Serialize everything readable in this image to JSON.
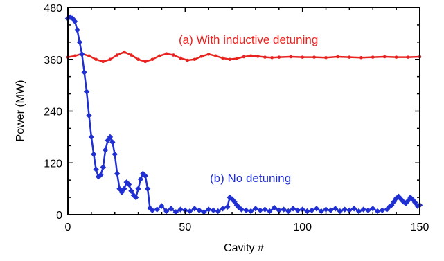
{
  "chart_data": {
    "type": "line",
    "title": "",
    "xlabel": "Cavity #",
    "ylabel": "Power (MW)",
    "xlim": [
      0,
      150
    ],
    "ylim": [
      0,
      480
    ],
    "xticks": [
      0,
      50,
      100,
      150
    ],
    "yticks": [
      0,
      120,
      240,
      360,
      480
    ],
    "grid": false,
    "legend": "none",
    "series": [
      {
        "color": "#e8231f",
        "marker": "circle",
        "x": [
          0,
          3,
          6,
          9,
          12,
          15,
          18,
          21,
          24,
          27,
          30,
          33,
          36,
          39,
          42,
          45,
          48,
          51,
          54,
          57,
          60,
          63,
          66,
          69,
          72,
          75,
          78,
          81,
          84,
          87,
          90,
          95,
          100,
          105,
          110,
          115,
          120,
          125,
          130,
          135,
          140,
          145,
          150
        ],
        "values": [
          365,
          368,
          373,
          368,
          360,
          355,
          360,
          370,
          377,
          370,
          360,
          355,
          360,
          368,
          373,
          370,
          363,
          358,
          360,
          367,
          372,
          368,
          363,
          360,
          362,
          366,
          368,
          367,
          365,
          364,
          365,
          366,
          365,
          365,
          364,
          366,
          365,
          364,
          365,
          366,
          365,
          365,
          366
        ]
      },
      {
        "color": "#1f2fd1",
        "marker": "diamond",
        "x": [
          0,
          1,
          2,
          3,
          4,
          5,
          6,
          7,
          8,
          9,
          10,
          11,
          12,
          13,
          14,
          15,
          16,
          17,
          18,
          19,
          20,
          21,
          22,
          23,
          24,
          25,
          26,
          27,
          28,
          29,
          30,
          31,
          32,
          33,
          34,
          35,
          36,
          38,
          40,
          42,
          44,
          46,
          48,
          50,
          52,
          54,
          56,
          58,
          60,
          62,
          64,
          66,
          68,
          69,
          70,
          71,
          72,
          73,
          74,
          76,
          78,
          80,
          82,
          84,
          86,
          88,
          90,
          92,
          94,
          96,
          98,
          100,
          102,
          104,
          106,
          108,
          110,
          112,
          114,
          116,
          118,
          120,
          122,
          124,
          126,
          128,
          130,
          132,
          134,
          136,
          137,
          138,
          139,
          140,
          141,
          142,
          143,
          144,
          145,
          146,
          147,
          148,
          149,
          150
        ],
        "values": [
          455,
          458,
          455,
          448,
          428,
          400,
          372,
          330,
          285,
          230,
          180,
          140,
          105,
          88,
          92,
          110,
          150,
          172,
          180,
          168,
          140,
          95,
          60,
          52,
          60,
          75,
          70,
          55,
          45,
          40,
          60,
          82,
          95,
          90,
          60,
          15,
          10,
          12,
          20,
          8,
          14,
          6,
          12,
          10,
          8,
          14,
          10,
          6,
          12,
          10,
          8,
          14,
          18,
          40,
          36,
          30,
          22,
          16,
          12,
          10,
          8,
          14,
          10,
          12,
          8,
          16,
          10,
          12,
          8,
          14,
          10,
          12,
          8,
          10,
          14,
          8,
          12,
          10,
          14,
          8,
          12,
          10,
          14,
          8,
          12,
          10,
          14,
          8,
          10,
          12,
          18,
          22,
          30,
          38,
          42,
          36,
          30,
          26,
          32,
          40,
          35,
          28,
          20,
          22
        ]
      }
    ],
    "annotations": [
      {
        "text": "(a)  With inductive detuning",
        "color": "#e8231f"
      },
      {
        "text": "(b)  No detuning",
        "color": "#1f2fd1"
      }
    ]
  }
}
